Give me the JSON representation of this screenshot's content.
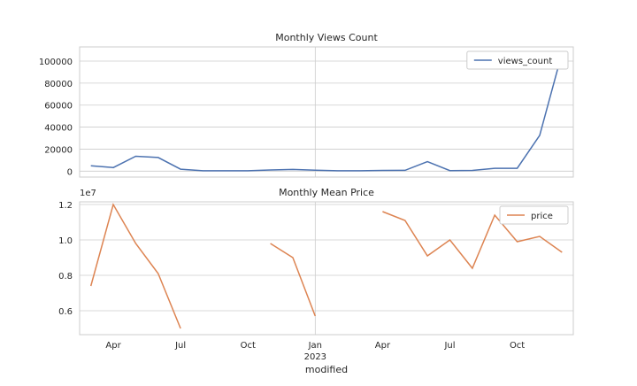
{
  "colors": {
    "background": "#ffffff",
    "grid": "#cccccc",
    "axes_edge": "#cccccc",
    "text": "#262626",
    "series_views": "#4c72b0",
    "series_price": "#dd8452"
  },
  "shared_x": {
    "xlabel": "modified",
    "tick_labels": [
      "Apr",
      "Jul",
      "Oct",
      "Jan",
      "Apr",
      "Jul",
      "Oct"
    ],
    "tick_dates": [
      "2022-04",
      "2022-07",
      "2022-10",
      "2023-01",
      "2023-04",
      "2023-07",
      "2023-10"
    ],
    "year_label": "2023",
    "year_label_under": "2023-01"
  },
  "chart_data": [
    {
      "type": "line",
      "title": "Monthly Views Count",
      "xlabel": "modified",
      "ylabel": "",
      "x": [
        "2022-03",
        "2022-04",
        "2022-05",
        "2022-06",
        "2022-07",
        "2022-08",
        "2022-09",
        "2022-10",
        "2022-11",
        "2022-12",
        "2023-01",
        "2023-02",
        "2023-03",
        "2023-04",
        "2023-05",
        "2023-06",
        "2023-07",
        "2023-08",
        "2023-09",
        "2023-10",
        "2023-11",
        "2023-12"
      ],
      "series": [
        {
          "name": "views_count",
          "color": "#4c72b0",
          "values": [
            4800,
            3200,
            13500,
            12400,
            1800,
            300,
            300,
            300,
            1000,
            1500,
            800,
            300,
            300,
            600,
            700,
            8700,
            500,
            600,
            2600,
            2600,
            32500,
            107500
          ]
        }
      ],
      "yticks": [
        0,
        20000,
        40000,
        60000,
        80000,
        100000
      ],
      "ytick_labels": [
        "0",
        "20000",
        "40000",
        "60000",
        "80000",
        "100000"
      ],
      "ylim": [
        -5400,
        112900
      ],
      "grid": true,
      "legend": "upper right"
    },
    {
      "type": "line",
      "title": "Monthly Mean Price",
      "xlabel": "modified",
      "ylabel": "",
      "y_offset_label": "1e7",
      "x": [
        "2022-03",
        "2022-04",
        "2022-05",
        "2022-06",
        "2022-07",
        "2022-08",
        "2022-09",
        "2022-10",
        "2022-11",
        "2022-12",
        "2023-01",
        "2023-02",
        "2023-03",
        "2023-04",
        "2023-05",
        "2023-06",
        "2023-07",
        "2023-08",
        "2023-09",
        "2023-10",
        "2023-11",
        "2023-12"
      ],
      "series": [
        {
          "name": "price",
          "color": "#dd8452",
          "values": [
            0.74,
            1.2,
            0.98,
            0.81,
            0.5,
            null,
            null,
            null,
            0.98,
            0.9,
            0.57,
            null,
            null,
            1.16,
            1.11,
            0.91,
            1.0,
            0.84,
            1.14,
            0.99,
            1.02,
            0.93
          ]
        }
      ],
      "yticks": [
        0.6,
        0.8,
        1.0,
        1.2
      ],
      "ytick_labels": [
        "0.6",
        "0.8",
        "1.0",
        "1.2"
      ],
      "ylim": [
        0.465,
        1.215
      ],
      "grid": true,
      "legend": "upper right"
    }
  ]
}
